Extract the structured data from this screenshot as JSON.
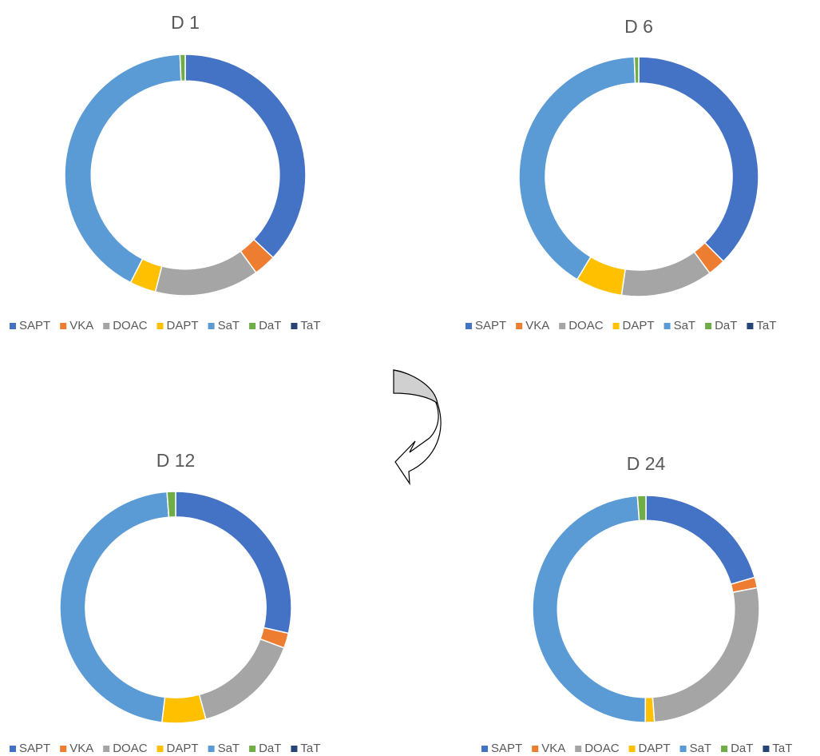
{
  "chart_data": [
    {
      "type": "doughnut",
      "title": "D 1",
      "categories": [
        "SAPT",
        "VKA",
        "DOAC",
        "DAPT",
        "SaT",
        "DaT",
        "TaT"
      ],
      "values": [
        37,
        3,
        14,
        3.5,
        41.8,
        0.7,
        0
      ],
      "colors": [
        "#4472c4",
        "#ed7d31",
        "#a5a5a5",
        "#ffc000",
        "#5b9bd5",
        "#70ad47",
        "#264478"
      ]
    },
    {
      "type": "doughnut",
      "title": "D 6",
      "categories": [
        "SAPT",
        "VKA",
        "DOAC",
        "DAPT",
        "SaT",
        "DaT",
        "TaT"
      ],
      "values": [
        37.5,
        2.4,
        12.4,
        6.3,
        40.8,
        0.6,
        0
      ],
      "colors": [
        "#4472c4",
        "#ed7d31",
        "#a5a5a5",
        "#ffc000",
        "#5b9bd5",
        "#70ad47",
        "#264478"
      ]
    },
    {
      "type": "doughnut",
      "title": "D 12",
      "categories": [
        "SAPT",
        "VKA",
        "DOAC",
        "DAPT",
        "SaT",
        "DaT",
        "TaT"
      ],
      "values": [
        28.6,
        2.1,
        15.1,
        6.1,
        46.9,
        1.2,
        0
      ],
      "colors": [
        "#4472c4",
        "#ed7d31",
        "#a5a5a5",
        "#ffc000",
        "#5b9bd5",
        "#70ad47",
        "#264478"
      ]
    },
    {
      "type": "doughnut",
      "title": "D 24",
      "categories": [
        "SAPT",
        "VKA",
        "DOAC",
        "DAPT",
        "SaT",
        "DaT",
        "TaT"
      ],
      "values": [
        20.5,
        1.5,
        26.8,
        1.3,
        48.7,
        1.2,
        0
      ],
      "colors": [
        "#4472c4",
        "#ed7d31",
        "#a5a5a5",
        "#ffc000",
        "#5b9bd5",
        "#70ad47",
        "#264478"
      ]
    }
  ]
}
